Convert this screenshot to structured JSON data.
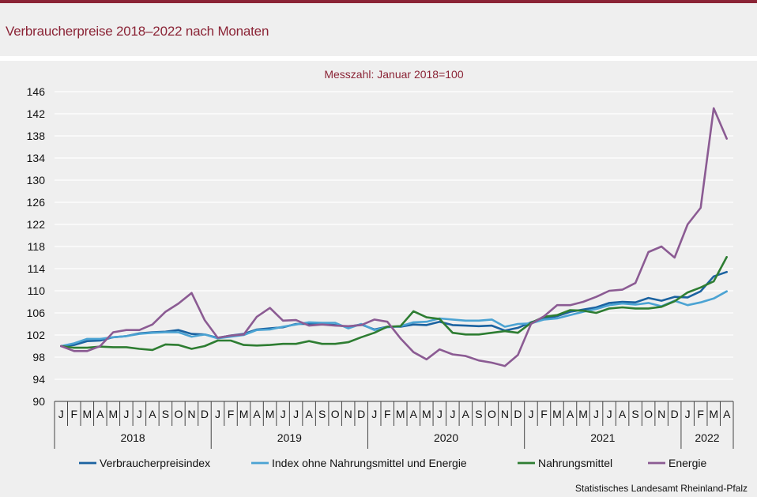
{
  "header": {
    "title": "Verbraucherpreise 2018–2022 nach Monaten"
  },
  "source": "Statistisches Landesamt Rheinland-Pfalz",
  "colors": {
    "brand": "#8b2436",
    "background": "#efefef",
    "gridline": "#ffffff"
  },
  "chart_data": {
    "type": "line",
    "subtitle": "Messzahl:  Januar  2018=100",
    "ylim": [
      90,
      146
    ],
    "yticks": [
      90,
      94,
      98,
      102,
      106,
      110,
      114,
      118,
      122,
      126,
      130,
      134,
      138,
      142,
      146
    ],
    "grid": true,
    "legend_position": "bottom",
    "months": [
      "J",
      "F",
      "M",
      "A",
      "M",
      "J",
      "J",
      "A",
      "S",
      "O",
      "N",
      "D",
      "J",
      "F",
      "M",
      "A",
      "M",
      "J",
      "J",
      "A",
      "S",
      "O",
      "N",
      "D",
      "J",
      "F",
      "M",
      "A",
      "M",
      "J",
      "J",
      "A",
      "S",
      "O",
      "N",
      "D",
      "J",
      "F",
      "M",
      "A",
      "M",
      "J",
      "J",
      "A",
      "S",
      "O",
      "N",
      "D",
      "J",
      "F",
      "M",
      "A"
    ],
    "years": [
      {
        "label": "2018",
        "months": 12
      },
      {
        "label": "2019",
        "months": 12
      },
      {
        "label": "2020",
        "months": 12
      },
      {
        "label": "2021",
        "months": 12
      },
      {
        "label": "2022",
        "months": 4
      }
    ],
    "series": [
      {
        "name": "Verbraucherpreisindex",
        "color": "#1b62a0",
        "values": [
          100,
          100.2,
          100.9,
          101.0,
          101.6,
          101.8,
          102.3,
          102.5,
          102.6,
          102.9,
          102.2,
          102.1,
          101.5,
          101.9,
          102.2,
          103.0,
          103.2,
          103.4,
          104.0,
          104.0,
          104.0,
          103.8,
          103.5,
          103.9,
          103.0,
          103.5,
          103.5,
          103.9,
          103.8,
          104.4,
          103.8,
          103.7,
          103.6,
          103.7,
          102.8,
          103.3,
          104.3,
          105.0,
          105.4,
          106.2,
          106.6,
          107.0,
          107.8,
          108.0,
          107.9,
          108.7,
          108.2,
          108.9,
          108.8,
          109.9,
          112.6,
          113.4
        ]
      },
      {
        "name": "Index ohne Nahrungsmittel und Energie",
        "color": "#4ba3d3",
        "values": [
          100,
          100.5,
          101.3,
          101.3,
          101.6,
          101.8,
          102.2,
          102.4,
          102.5,
          102.5,
          101.7,
          102.1,
          101.4,
          101.7,
          102.0,
          102.9,
          103.0,
          103.5,
          103.9,
          104.3,
          104.2,
          104.2,
          103.2,
          104.0,
          102.9,
          103.4,
          103.6,
          104.3,
          104.4,
          105.0,
          104.8,
          104.6,
          104.6,
          104.8,
          103.5,
          104.0,
          104.1,
          104.8,
          105.0,
          105.6,
          106.2,
          106.7,
          107.4,
          107.7,
          107.5,
          107.8,
          107.2,
          108.2,
          107.4,
          107.9,
          108.6,
          109.9
        ]
      },
      {
        "name": "Nahrungsmittel",
        "color": "#2e7d32",
        "values": [
          100,
          99.7,
          99.7,
          99.9,
          99.8,
          99.8,
          99.5,
          99.3,
          100.3,
          100.2,
          99.5,
          100.0,
          101.0,
          101.0,
          100.2,
          100.1,
          100.2,
          100.4,
          100.4,
          100.9,
          100.4,
          100.4,
          100.7,
          101.6,
          102.4,
          103.5,
          103.6,
          106.3,
          105.2,
          104.9,
          102.4,
          102.1,
          102.1,
          102.4,
          102.7,
          102.4,
          104.2,
          105.3,
          105.6,
          106.5,
          106.4,
          106.0,
          106.8,
          107.0,
          106.8,
          106.8,
          107.1,
          108.1,
          109.7,
          110.6,
          111.7,
          116.1
        ]
      },
      {
        "name": "Energie",
        "color": "#8b5b93",
        "values": [
          100,
          99.1,
          99.1,
          100.0,
          102.5,
          102.9,
          102.9,
          103.9,
          106.2,
          107.7,
          109.6,
          104.7,
          101.5,
          101.9,
          102.1,
          105.3,
          106.9,
          104.6,
          104.7,
          103.7,
          103.9,
          103.7,
          103.6,
          103.8,
          104.8,
          104.4,
          101.4,
          98.9,
          97.6,
          99.4,
          98.5,
          98.2,
          97.4,
          97.0,
          96.4,
          98.4,
          104.0,
          105.4,
          107.4,
          107.4,
          108.0,
          108.9,
          110.0,
          110.2,
          111.4,
          117.0,
          118.0,
          116.0,
          122.0,
          125.0,
          143.0,
          137.5
        ]
      }
    ]
  }
}
